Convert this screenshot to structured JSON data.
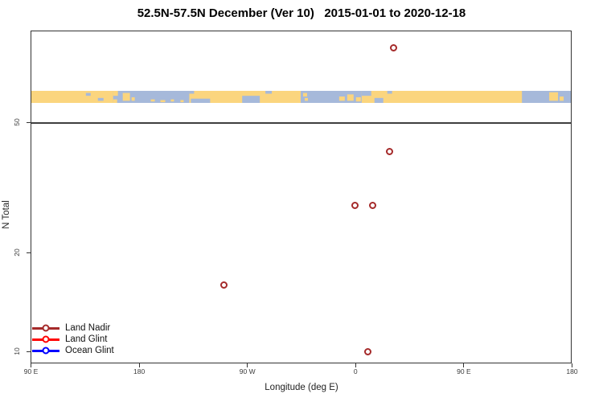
{
  "title": "52.5N-57.5N December (Ver 10)   2015-01-01 to 2020-12-18",
  "chart_data": {
    "type": "scatter",
    "title": "52.5N-57.5N December (Ver 10)   2015-01-01 to 2020-12-18",
    "xlabel": "Longitude (deg E)",
    "ylabel": "N Total",
    "x_ticks": [
      "90 E",
      "180",
      "90 W",
      "0",
      "90 E",
      "180"
    ],
    "x_tick_degrees": [
      90,
      180,
      270,
      360,
      450,
      540
    ],
    "xlim_degrees": [
      90,
      540
    ],
    "y_scale": "log10",
    "y_ticks": [
      10,
      20,
      50
    ],
    "ylim": [
      9.18,
      95.2
    ],
    "reference_line_y": 50,
    "grid": false,
    "legend_position": "bottom-left",
    "series": [
      {
        "name": "Land Nadir",
        "color": "#A52A2A",
        "points": [
          {
            "lon": 31,
            "n": 85
          },
          {
            "lon": 28,
            "n": 41
          },
          {
            "lon": -1,
            "n": 28
          },
          {
            "lon": 14,
            "n": 28
          },
          {
            "lon": -110,
            "n": 16
          },
          {
            "lon": 10,
            "n": 10
          }
        ]
      },
      {
        "name": "Land Glint",
        "color": "#FF0000",
        "points": []
      },
      {
        "name": "Ocean Glint",
        "color": "#0000FF",
        "points": []
      }
    ],
    "map_strip": {
      "description": "land/ocean map band for latitude zone 52.5N-57.5N",
      "land_color": "#FBD57E",
      "ocean_color": "#A6B9DA"
    }
  }
}
